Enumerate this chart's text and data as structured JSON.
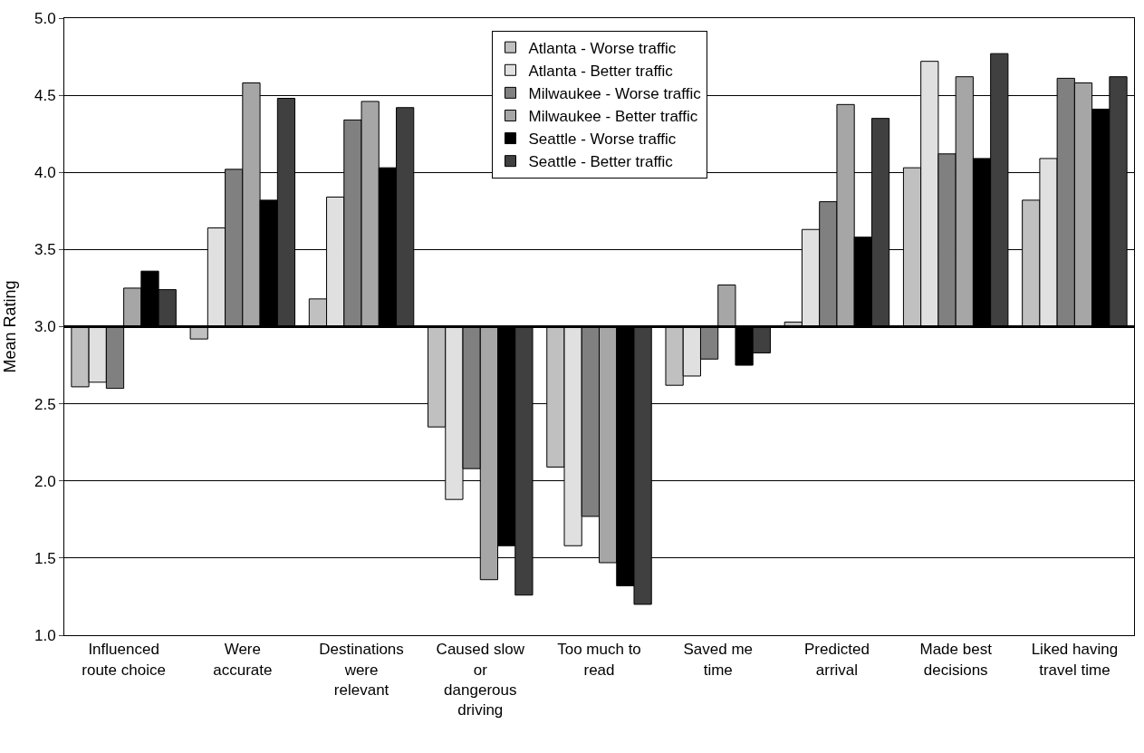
{
  "chart_data": {
    "type": "bar",
    "ylabel": "Mean Rating",
    "categories": [
      "Influenced\nroute choice",
      "Were\naccurate",
      "Destinations\nwere\nrelevant",
      "Caused slow\nor\ndangerous\ndriving",
      "Too much to\nread",
      "Saved me\ntime",
      "Predicted\narrival",
      "Made best\ndecisions",
      "Liked having\ntravel time"
    ],
    "series": [
      {
        "name": "Atlanta - Worse traffic",
        "color": "#c0c0c0",
        "base": [
          3,
          3,
          3,
          3,
          3,
          3,
          3,
          3,
          3
        ],
        "values": [
          -0.39,
          -0.08,
          0.18,
          -0.65,
          -0.91,
          -0.38,
          0.03,
          1.03,
          0.82
        ]
      },
      {
        "name": "Atlanta - Better traffic",
        "color": "#e0e0e0",
        "base": [
          3,
          3,
          3,
          3,
          3,
          3,
          3,
          3,
          3
        ],
        "values": [
          -0.36,
          0.64,
          0.84,
          -1.12,
          -1.42,
          -0.32,
          0.63,
          1.72,
          1.09
        ]
      },
      {
        "name": "Milwaukee - Worse traffic",
        "color": "#808080",
        "base": [
          3,
          3,
          3,
          3,
          3,
          3,
          3,
          3,
          3
        ],
        "values": [
          -0.4,
          1.02,
          1.34,
          -0.92,
          -1.23,
          -0.21,
          0.81,
          1.12,
          1.61
        ]
      },
      {
        "name": "Milwaukee - Better traffic",
        "color": "#a6a6a6",
        "base": [
          3,
          3,
          3,
          3,
          3,
          3,
          3,
          3,
          3
        ],
        "values": [
          0.25,
          1.58,
          1.46,
          -1.64,
          -1.53,
          0.27,
          1.44,
          1.62,
          1.58
        ]
      },
      {
        "name": "Seattle - Worse traffic",
        "color": "#000000",
        "base": [
          3,
          3,
          3,
          3,
          3,
          3,
          3,
          3,
          3
        ],
        "values": [
          0.36,
          0.82,
          1.03,
          -1.42,
          -1.68,
          -0.25,
          0.58,
          1.09,
          1.41
        ]
      },
      {
        "name": "Seattle - Better traffic",
        "color": "#404040",
        "base": [
          3,
          3,
          3,
          3,
          3,
          3,
          3,
          3,
          3
        ],
        "values": [
          0.24,
          1.48,
          1.42,
          -1.74,
          -1.8,
          -0.17,
          1.35,
          1.77,
          1.62
        ]
      }
    ],
    "ylim": [
      1.0,
      5.0
    ],
    "yticks": [
      {
        "value": 1.0,
        "label": "1.0"
      },
      {
        "value": 1.5,
        "label": "1.5"
      },
      {
        "value": 2.0,
        "label": "2.0"
      },
      {
        "value": 2.5,
        "label": "2.5"
      },
      {
        "value": 3.0,
        "label": "3.0"
      },
      {
        "value": 3.5,
        "label": "3.5"
      },
      {
        "value": 4.0,
        "label": "4.0"
      },
      {
        "value": 4.5,
        "label": "4.5"
      },
      {
        "value": 5.0,
        "label": "5.0"
      }
    ],
    "ref_lines": [
      {
        "axis": "y",
        "value": 3.0,
        "color": "#000000"
      }
    ],
    "grid": "y",
    "legend": "top"
  }
}
